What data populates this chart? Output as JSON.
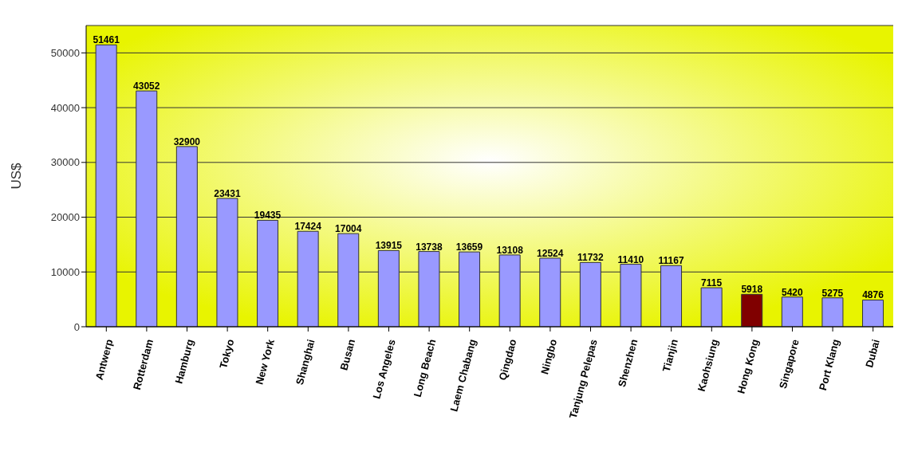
{
  "chart_data": {
    "type": "bar",
    "ylabel": "US$",
    "categories": [
      "Antwerp",
      "Rotterdam",
      "Hamburg",
      "Tokyo",
      "New York",
      "Shanghai",
      "Busan",
      "Los Angeles",
      "Long Beach",
      "Laem Chabang",
      "Qingdao",
      "Ningbo",
      "Tanjung Pelepas",
      "Shenzhen",
      "Tianjin",
      "Kaohsiung",
      "Hong Kong",
      "Singapore",
      "Port Klang",
      "Dubai"
    ],
    "values": [
      51461,
      43052,
      32900,
      23431,
      19435,
      17424,
      17004,
      13915,
      13738,
      13659,
      13108,
      12524,
      11732,
      11410,
      11167,
      7115,
      5918,
      5420,
      5275,
      4876
    ],
    "colors": [
      "#9999ff",
      "#9999ff",
      "#9999ff",
      "#9999ff",
      "#9999ff",
      "#9999ff",
      "#9999ff",
      "#9999ff",
      "#9999ff",
      "#9999ff",
      "#9999ff",
      "#9999ff",
      "#9999ff",
      "#9999ff",
      "#9999ff",
      "#9999ff",
      "#800000",
      "#9999ff",
      "#9999ff",
      "#9999ff"
    ],
    "ylim": [
      0,
      55000
    ],
    "yticks": [
      0,
      10000,
      20000,
      30000,
      40000,
      50000
    ],
    "grid": "y",
    "data_labels": true,
    "legend": false
  }
}
